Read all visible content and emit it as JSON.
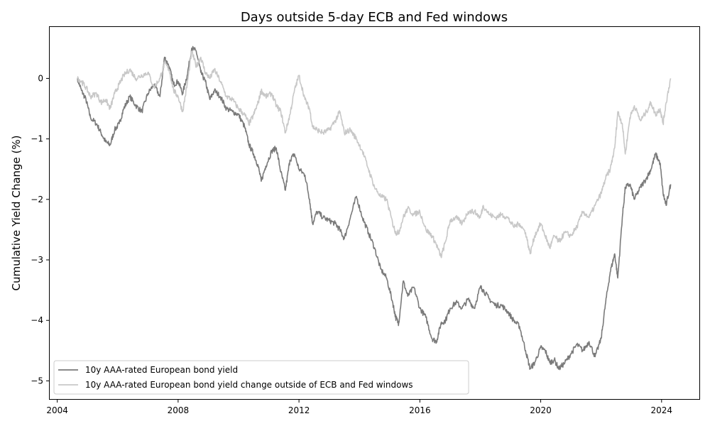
{
  "chart_data": {
    "type": "line",
    "title": "Days outside 5-day ECB and Fed windows",
    "xlabel": "",
    "ylabel": "Cumulative Yield Change (%)",
    "xlim": [
      2003.75,
      2025.25
    ],
    "ylim": [
      -5.3,
      0.85
    ],
    "x_ticks": [
      2004,
      2008,
      2012,
      2016,
      2020,
      2024
    ],
    "y_ticks": [
      0,
      -1,
      -2,
      -3,
      -4,
      -5
    ],
    "y_tick_labels": [
      "0",
      "−1",
      "−2",
      "−3",
      "−4",
      "−5"
    ],
    "grid": false,
    "legend": "lower-left",
    "series": [
      {
        "name": "10y AAA-rated European bond yield",
        "color": "#7a7a7a",
        "x": [
          2004.67,
          2004.8,
          2004.95,
          2005.1,
          2005.3,
          2005.45,
          2005.6,
          2005.75,
          2005.9,
          2006.05,
          2006.2,
          2006.4,
          2006.6,
          2006.8,
          2007.0,
          2007.2,
          2007.4,
          2007.55,
          2007.7,
          2007.85,
          2008.0,
          2008.15,
          2008.3,
          2008.45,
          2008.6,
          2008.75,
          2008.9,
          2009.05,
          2009.2,
          2009.4,
          2009.6,
          2009.8,
          2010.0,
          2010.2,
          2010.35,
          2010.5,
          2010.65,
          2010.75,
          2010.9,
          2011.1,
          2011.25,
          2011.4,
          2011.55,
          2011.7,
          2011.85,
          2012.0,
          2012.2,
          2012.35,
          2012.45,
          2012.6,
          2012.8,
          2013.0,
          2013.2,
          2013.35,
          2013.5,
          2013.7,
          2013.9,
          2014.1,
          2014.3,
          2014.5,
          2014.7,
          2014.9,
          2015.1,
          2015.2,
          2015.3,
          2015.45,
          2015.6,
          2015.8,
          2016.0,
          2016.2,
          2016.4,
          2016.55,
          2016.7,
          2016.85,
          2017.0,
          2017.2,
          2017.4,
          2017.6,
          2017.8,
          2018.0,
          2018.1,
          2018.3,
          2018.5,
          2018.7,
          2018.9,
          2019.1,
          2019.3,
          2019.5,
          2019.65,
          2019.8,
          2020.0,
          2020.15,
          2020.3,
          2020.45,
          2020.6,
          2020.8,
          2021.0,
          2021.2,
          2021.4,
          2021.6,
          2021.8,
          2022.0,
          2022.15,
          2022.3,
          2022.45,
          2022.55,
          2022.7,
          2022.8,
          2022.95,
          2023.1,
          2023.3,
          2023.5,
          2023.65,
          2023.8,
          2023.95,
          2024.05,
          2024.15,
          2024.3
        ],
        "values": [
          0.0,
          -0.2,
          -0.35,
          -0.65,
          -0.75,
          -0.9,
          -1.05,
          -1.1,
          -0.85,
          -0.75,
          -0.5,
          -0.3,
          -0.45,
          -0.55,
          -0.25,
          -0.1,
          -0.3,
          0.35,
          0.2,
          -0.1,
          -0.05,
          -0.25,
          0.05,
          0.5,
          0.45,
          0.1,
          -0.05,
          -0.35,
          -0.2,
          -0.3,
          -0.5,
          -0.55,
          -0.6,
          -0.8,
          -1.1,
          -1.25,
          -1.45,
          -1.7,
          -1.45,
          -1.2,
          -1.15,
          -1.55,
          -1.85,
          -1.35,
          -1.25,
          -1.5,
          -1.6,
          -2.0,
          -2.4,
          -2.2,
          -2.3,
          -2.35,
          -2.4,
          -2.5,
          -2.65,
          -2.3,
          -1.95,
          -2.3,
          -2.55,
          -2.8,
          -3.15,
          -3.3,
          -3.7,
          -3.95,
          -4.05,
          -3.35,
          -3.6,
          -3.45,
          -3.8,
          -3.95,
          -4.3,
          -4.35,
          -4.05,
          -4.0,
          -3.8,
          -3.7,
          -3.8,
          -3.65,
          -3.8,
          -3.45,
          -3.5,
          -3.65,
          -3.75,
          -3.75,
          -3.85,
          -4.0,
          -4.1,
          -4.5,
          -4.8,
          -4.7,
          -4.45,
          -4.5,
          -4.7,
          -4.65,
          -4.8,
          -4.7,
          -4.55,
          -4.4,
          -4.5,
          -4.35,
          -4.6,
          -4.3,
          -3.7,
          -3.2,
          -2.9,
          -3.3,
          -2.3,
          -1.8,
          -1.75,
          -2.0,
          -1.8,
          -1.65,
          -1.5,
          -1.25,
          -1.4,
          -1.9,
          -2.1,
          -1.75
        ]
      },
      {
        "name": "10y AAA-rated European bond yield change outside of ECB and Fed windows",
        "color": "#c8c8c8",
        "x": [
          2004.67,
          2004.8,
          2004.95,
          2005.1,
          2005.3,
          2005.45,
          2005.6,
          2005.75,
          2005.9,
          2006.05,
          2006.2,
          2006.4,
          2006.6,
          2006.8,
          2007.0,
          2007.2,
          2007.4,
          2007.55,
          2007.7,
          2007.85,
          2008.0,
          2008.15,
          2008.3,
          2008.45,
          2008.6,
          2008.75,
          2008.9,
          2009.05,
          2009.2,
          2009.4,
          2009.6,
          2009.8,
          2010.0,
          2010.2,
          2010.35,
          2010.5,
          2010.65,
          2010.75,
          2010.9,
          2011.1,
          2011.25,
          2011.4,
          2011.55,
          2011.7,
          2011.85,
          2012.0,
          2012.2,
          2012.35,
          2012.45,
          2012.6,
          2012.8,
          2013.0,
          2013.2,
          2013.35,
          2013.5,
          2013.7,
          2013.9,
          2014.1,
          2014.3,
          2014.5,
          2014.7,
          2014.9,
          2015.1,
          2015.2,
          2015.3,
          2015.45,
          2015.6,
          2015.8,
          2016.0,
          2016.2,
          2016.4,
          2016.55,
          2016.7,
          2016.85,
          2017.0,
          2017.2,
          2017.4,
          2017.6,
          2017.8,
          2018.0,
          2018.1,
          2018.3,
          2018.5,
          2018.7,
          2018.9,
          2019.1,
          2019.3,
          2019.5,
          2019.65,
          2019.8,
          2020.0,
          2020.15,
          2020.3,
          2020.45,
          2020.6,
          2020.8,
          2021.0,
          2021.2,
          2021.4,
          2021.6,
          2021.8,
          2022.0,
          2022.15,
          2022.3,
          2022.45,
          2022.55,
          2022.7,
          2022.8,
          2022.95,
          2023.1,
          2023.3,
          2023.5,
          2023.65,
          2023.8,
          2023.95,
          2024.05,
          2024.15,
          2024.3
        ],
        "values": [
          0.0,
          -0.05,
          -0.15,
          -0.3,
          -0.25,
          -0.4,
          -0.35,
          -0.5,
          -0.25,
          -0.1,
          0.05,
          0.15,
          0.0,
          0.05,
          0.1,
          -0.15,
          0.0,
          0.25,
          0.15,
          -0.2,
          -0.3,
          -0.55,
          -0.1,
          0.45,
          0.2,
          0.35,
          0.1,
          0.0,
          0.15,
          -0.05,
          -0.3,
          -0.35,
          -0.5,
          -0.6,
          -0.75,
          -0.6,
          -0.4,
          -0.2,
          -0.3,
          -0.25,
          -0.45,
          -0.55,
          -0.9,
          -0.6,
          -0.2,
          0.05,
          -0.35,
          -0.5,
          -0.8,
          -0.85,
          -0.9,
          -0.85,
          -0.7,
          -0.55,
          -0.9,
          -0.85,
          -1.0,
          -1.2,
          -1.5,
          -1.8,
          -1.95,
          -2.0,
          -2.4,
          -2.55,
          -2.55,
          -2.3,
          -2.15,
          -2.25,
          -2.2,
          -2.5,
          -2.6,
          -2.75,
          -2.95,
          -2.7,
          -2.35,
          -2.3,
          -2.4,
          -2.2,
          -2.2,
          -2.3,
          -2.1,
          -2.25,
          -2.3,
          -2.25,
          -2.3,
          -2.45,
          -2.4,
          -2.55,
          -2.9,
          -2.6,
          -2.4,
          -2.6,
          -2.8,
          -2.6,
          -2.7,
          -2.55,
          -2.6,
          -2.45,
          -2.2,
          -2.3,
          -2.1,
          -1.9,
          -1.65,
          -1.5,
          -1.15,
          -0.55,
          -0.75,
          -1.25,
          -0.65,
          -0.45,
          -0.7,
          -0.55,
          -0.4,
          -0.6,
          -0.5,
          -0.75,
          -0.4,
          0.0
        ]
      }
    ]
  }
}
